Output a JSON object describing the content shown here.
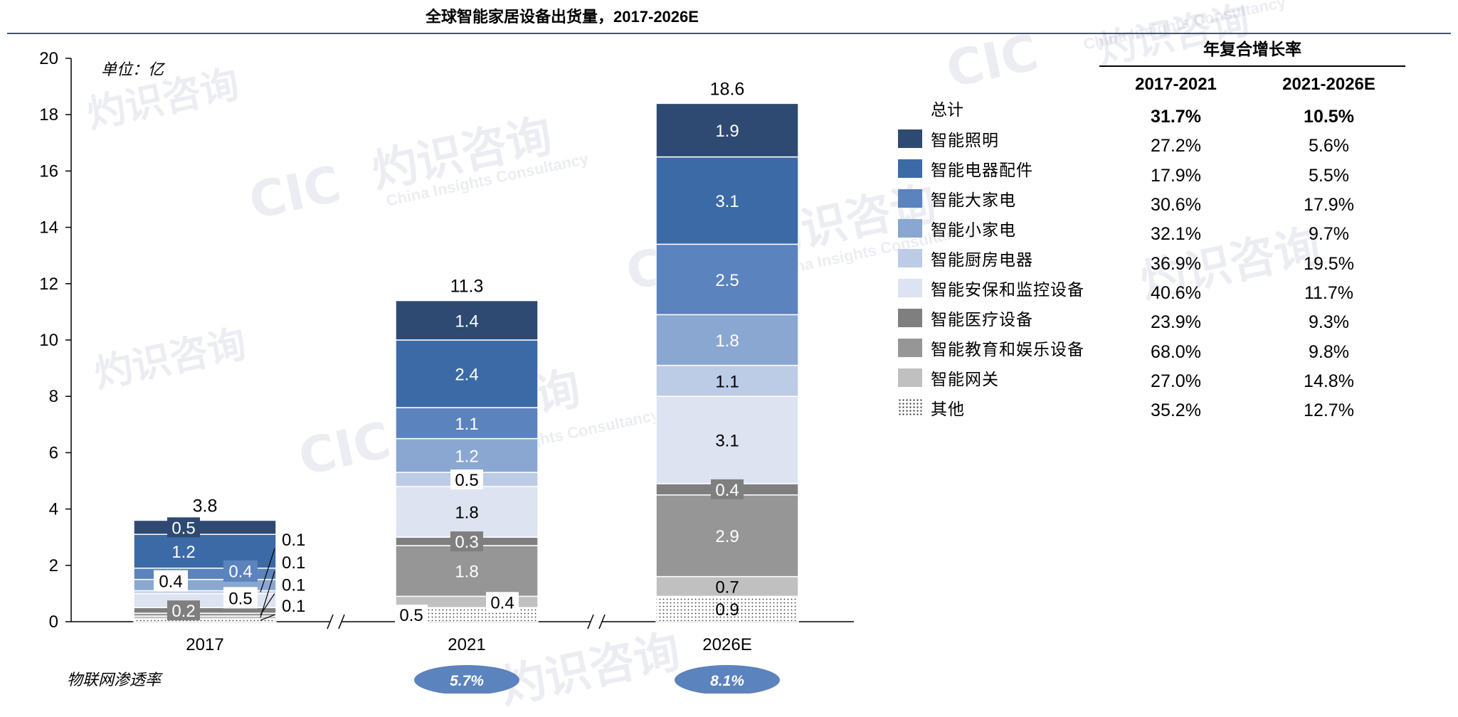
{
  "title": "全球智能家居设备出货量，2017-2026E",
  "unit_label": "单位：亿",
  "iot_label": "物联网渗透率",
  "watermark": {
    "cn": "灼识咨询",
    "en": "China Insights Consultancy",
    "logo": "CIC"
  },
  "colors": {
    "智能照明": "#2e4a72",
    "智能电器配件": "#3c6aa6",
    "智能大家电": "#5b83bd",
    "智能小家电": "#8aa7d2",
    "智能厨房电器": "#bccbe6",
    "智能安保和监控设备": "#dde3f0",
    "智能医疗设备": "#7f7f7f",
    "智能教育和娱乐设备": "#969696",
    "智能网关": "#c0c0c0",
    "其他": "dots",
    "iot_ellipse": "#5b83bd",
    "axis": "#000000"
  },
  "chart_data": {
    "type": "bar",
    "stacked": true,
    "categories": [
      "2017",
      "2021",
      "2026E"
    ],
    "ylim": [
      0,
      20
    ],
    "yticks": [
      0,
      2,
      4,
      6,
      8,
      10,
      12,
      14,
      16,
      18,
      20
    ],
    "totals": [
      "3.8",
      "11.3",
      "18.6"
    ],
    "iot_penetration": [
      "",
      "5.7%",
      "8.1%"
    ],
    "legend_title": "总计",
    "series": [
      {
        "name": "其他",
        "values": [
          0.1,
          0.5,
          0.9
        ],
        "labels": [
          "0.1",
          "0.5",
          "0.9"
        ]
      },
      {
        "name": "智能网关",
        "values": [
          0.1,
          0.4,
          0.7
        ],
        "labels": [
          "0.1",
          "0.4",
          "0.7"
        ]
      },
      {
        "name": "智能教育和娱乐设备",
        "values": [
          0.1,
          1.8,
          2.9
        ],
        "labels": [
          "0.1",
          "1.8",
          "2.9"
        ]
      },
      {
        "name": "智能医疗设备",
        "values": [
          0.2,
          0.3,
          0.4
        ],
        "labels": [
          "0.2",
          "0.3",
          "0.4"
        ]
      },
      {
        "name": "智能安保和监控设备",
        "values": [
          0.5,
          1.8,
          3.1
        ],
        "labels": [
          "0.5",
          "1.8",
          "3.1"
        ]
      },
      {
        "name": "智能厨房电器",
        "values": [
          0.1,
          0.5,
          1.1
        ],
        "labels": [
          "0.1",
          "0.5",
          "1.1"
        ]
      },
      {
        "name": "智能小家电",
        "values": [
          0.4,
          1.2,
          1.8
        ],
        "labels": [
          "0.4",
          "1.2",
          "1.8"
        ]
      },
      {
        "name": "智能大家电",
        "values": [
          0.4,
          1.1,
          2.5
        ],
        "labels": [
          "0.4",
          "1.1",
          "2.5"
        ]
      },
      {
        "name": "智能电器配件",
        "values": [
          1.2,
          2.4,
          3.1
        ],
        "labels": [
          "1.2",
          "2.4",
          "3.1"
        ]
      },
      {
        "name": "智能照明",
        "values": [
          0.5,
          1.4,
          1.9
        ],
        "labels": [
          "0.5",
          "1.4",
          "1.9"
        ]
      }
    ]
  },
  "cagr_table": {
    "title": "年复合增长率",
    "headers": [
      "2017-2021",
      "2021-2026E"
    ],
    "rows": [
      [
        "31.7%",
        "10.5%"
      ],
      [
        "27.2%",
        "5.6%"
      ],
      [
        "17.9%",
        "5.5%"
      ],
      [
        "30.6%",
        "17.9%"
      ],
      [
        "32.1%",
        "9.7%"
      ],
      [
        "36.9%",
        "19.5%"
      ],
      [
        "40.6%",
        "11.7%"
      ],
      [
        "23.9%",
        "9.3%"
      ],
      [
        "68.0%",
        "9.8%"
      ],
      [
        "27.0%",
        "14.8%"
      ],
      [
        "35.2%",
        "12.7%"
      ]
    ]
  }
}
